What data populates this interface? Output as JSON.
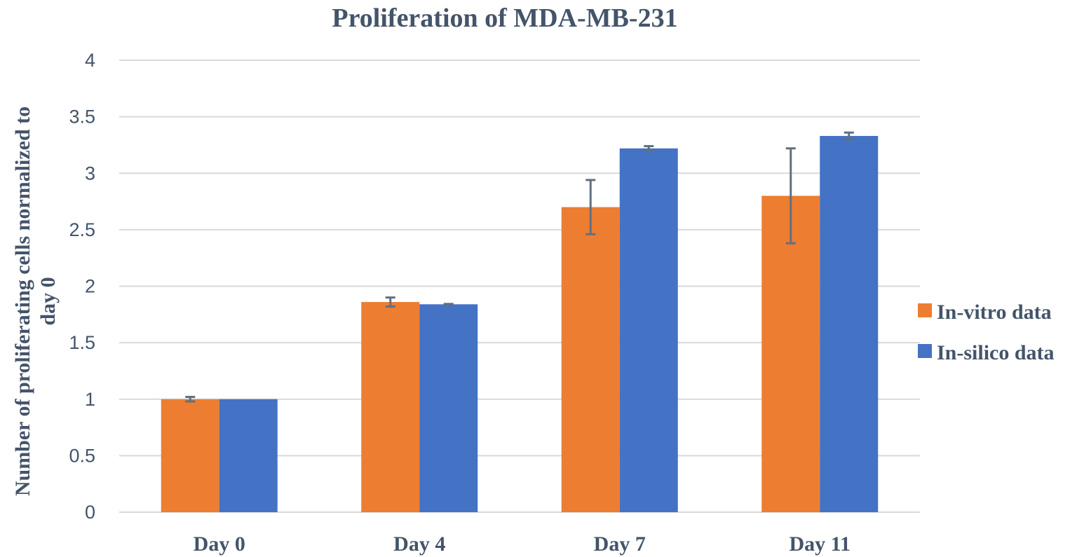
{
  "chart_data": {
    "type": "bar",
    "title": "Proliferation of MDA-MB-231",
    "ylabel": "Number of proliferating cells normalized to day 0",
    "ylabel_lines": [
      "Number of proliferating cells normalized to",
      "day 0"
    ],
    "xlabel": "",
    "categories": [
      "Day 0",
      "Day 4",
      "Day 7",
      "Day 11"
    ],
    "ylim": [
      0,
      4
    ],
    "yticks": [
      "0",
      "0.5",
      "1",
      "1.5",
      "2",
      "2.5",
      "3",
      "3.5",
      "4"
    ],
    "grid": true,
    "legend_position": "right",
    "series": [
      {
        "name": "In-vitro data",
        "color": "#ed7d31",
        "values": [
          1.0,
          1.86,
          2.7,
          2.8
        ],
        "error": [
          0.02,
          0.04,
          0.24,
          0.42
        ]
      },
      {
        "name": "In-silico data",
        "color": "#4472c4",
        "values": [
          1.0,
          1.84,
          3.22,
          3.33
        ],
        "error": [
          0.0,
          0.003,
          0.02,
          0.03
        ]
      }
    ]
  }
}
